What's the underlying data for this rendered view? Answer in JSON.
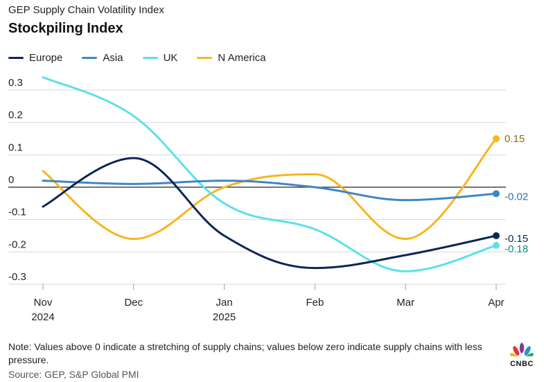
{
  "header": {
    "subtitle": "GEP Supply Chain Volatility Index",
    "title": "Stockpiling Index"
  },
  "legend": [
    {
      "label": "Europe",
      "color": "#0d2557"
    },
    {
      "label": "Asia",
      "color": "#3f86c6"
    },
    {
      "label": "UK",
      "color": "#5ce0ea"
    },
    {
      "label": "N America",
      "color": "#f7b51e"
    }
  ],
  "chart_data": {
    "type": "line",
    "title": "Stockpiling Index",
    "xlabel": "",
    "ylabel": "",
    "ylim": [
      -0.3,
      0.3
    ],
    "yticks": [
      "0.3",
      "0.2",
      "0.1",
      "0",
      "-0.1",
      "-0.2",
      "-0.3"
    ],
    "ytick_values": [
      0.3,
      0.2,
      0.1,
      0,
      -0.1,
      -0.2,
      -0.3
    ],
    "categories": [
      "Nov 2024",
      "Dec",
      "Jan 2025",
      "Feb",
      "Mar",
      "Apr"
    ],
    "x_labels": [
      [
        "Nov",
        "2024"
      ],
      [
        "Dec"
      ],
      [
        "Jan",
        "2025"
      ],
      [
        "Feb"
      ],
      [
        "Mar"
      ],
      [
        "Apr"
      ]
    ],
    "series": [
      {
        "name": "Europe",
        "color": "#0d2557",
        "values": [
          -0.06,
          0.09,
          -0.15,
          -0.25,
          -0.21,
          -0.15
        ],
        "end_label": "-0.15",
        "end_label_color": "#0d2557"
      },
      {
        "name": "Asia",
        "color": "#3f86c6",
        "values": [
          0.02,
          0.01,
          0.02,
          0.0,
          -0.04,
          -0.02
        ],
        "end_label": "-0.02",
        "end_label_color": "#2f6fb0"
      },
      {
        "name": "UK",
        "color": "#5ce0ea",
        "values": [
          0.34,
          0.22,
          -0.05,
          -0.13,
          -0.26,
          -0.18
        ],
        "end_label": "-0.18",
        "end_label_color": "#16858c"
      },
      {
        "name": "N America",
        "color": "#f7b51e",
        "values": [
          0.05,
          -0.16,
          0.0,
          0.04,
          -0.16,
          0.15
        ],
        "end_label": "0.15",
        "end_label_color": "#8a6a1a"
      }
    ],
    "grid": true,
    "legend_position": "top-left"
  },
  "footer": {
    "note": "Note: Values above 0 indicate a stretching of supply chains; values below zero indicate supply chains with less pressure.",
    "source": "Source: GEP, S&P Global PMI",
    "logo_text": "CNBC"
  }
}
